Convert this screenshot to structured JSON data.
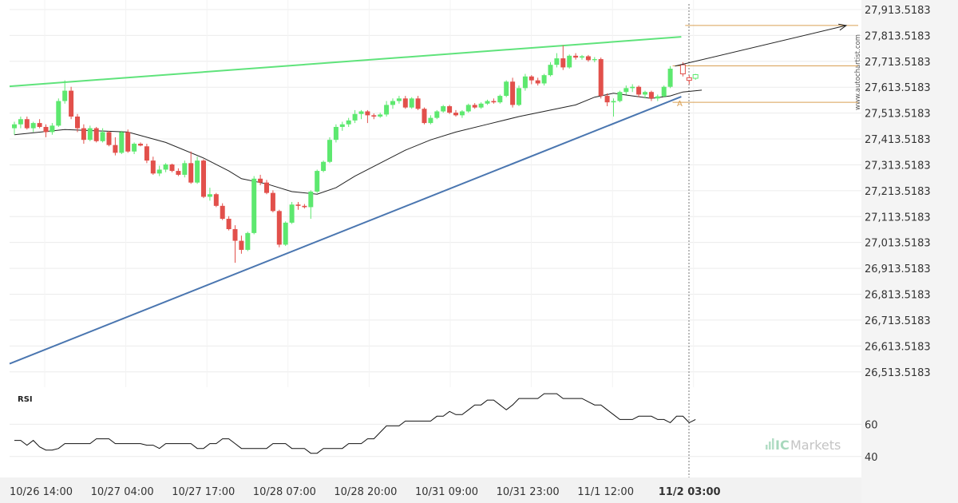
{
  "chart_data": {
    "type": "candlestick",
    "price_axis": {
      "ticks": [
        "27,913.5183",
        "27,813.5183",
        "27,713.5183",
        "27,613.5183",
        "27,513.5183",
        "27,413.5183",
        "27,313.5183",
        "27,213.5183",
        "27,113.5183",
        "27,013.5183",
        "26,913.5183",
        "26,813.5183",
        "26,713.5183",
        "26,613.5183",
        "26,513.5183"
      ],
      "ylim": [
        26485,
        27935
      ]
    },
    "time_axis": {
      "labels": [
        "10/26 14:00",
        "10/27 04:00",
        "10/27 17:00",
        "10/28 07:00",
        "10/28 20:00",
        "10/31 09:00",
        "10/31 23:00",
        "11/1 12:00",
        "11/2 03:00"
      ],
      "highlight": "11/2 03:00"
    },
    "watermark": "www.autochartist.com",
    "brand": {
      "prefix": "IC",
      "name": "Markets"
    },
    "rsi": {
      "label": "RSI",
      "ticks": [
        "60",
        "40"
      ],
      "ylim": [
        27,
        83
      ]
    },
    "pattern_marker": "A",
    "colors": {
      "bull": "#5de86f",
      "bear": "#e2504b",
      "resistance": "#5fe37b",
      "support": "#4a76b0",
      "level": "#d9a054",
      "ma": "#222222"
    },
    "candles": [
      {
        "o": 27455,
        "h": 27480,
        "l": 27430,
        "c": 27470
      },
      {
        "o": 27470,
        "h": 27500,
        "l": 27455,
        "c": 27490
      },
      {
        "o": 27490,
        "h": 27500,
        "l": 27450,
        "c": 27455
      },
      {
        "o": 27455,
        "h": 27480,
        "l": 27440,
        "c": 27475
      },
      {
        "o": 27475,
        "h": 27490,
        "l": 27455,
        "c": 27460
      },
      {
        "o": 27460,
        "h": 27470,
        "l": 27420,
        "c": 27440
      },
      {
        "o": 27440,
        "h": 27475,
        "l": 27430,
        "c": 27465
      },
      {
        "o": 27465,
        "h": 27570,
        "l": 27460,
        "c": 27560
      },
      {
        "o": 27560,
        "h": 27640,
        "l": 27550,
        "c": 27600
      },
      {
        "o": 27600,
        "h": 27615,
        "l": 27490,
        "c": 27500
      },
      {
        "o": 27500,
        "h": 27510,
        "l": 27440,
        "c": 27455
      },
      {
        "o": 27455,
        "h": 27470,
        "l": 27395,
        "c": 27410
      },
      {
        "o": 27410,
        "h": 27465,
        "l": 27405,
        "c": 27455
      },
      {
        "o": 27455,
        "h": 27460,
        "l": 27400,
        "c": 27405
      },
      {
        "o": 27405,
        "h": 27455,
        "l": 27400,
        "c": 27440
      },
      {
        "o": 27440,
        "h": 27445,
        "l": 27385,
        "c": 27390
      },
      {
        "o": 27390,
        "h": 27420,
        "l": 27350,
        "c": 27360
      },
      {
        "o": 27360,
        "h": 27445,
        "l": 27355,
        "c": 27440
      },
      {
        "o": 27440,
        "h": 27450,
        "l": 27360,
        "c": 27365
      },
      {
        "o": 27365,
        "h": 27400,
        "l": 27355,
        "c": 27395
      },
      {
        "o": 27395,
        "h": 27400,
        "l": 27385,
        "c": 27388
      },
      {
        "o": 27385,
        "h": 27395,
        "l": 27320,
        "c": 27330
      },
      {
        "o": 27330,
        "h": 27345,
        "l": 27275,
        "c": 27280
      },
      {
        "o": 27280,
        "h": 27310,
        "l": 27270,
        "c": 27295
      },
      {
        "o": 27295,
        "h": 27320,
        "l": 27285,
        "c": 27315
      },
      {
        "o": 27315,
        "h": 27318,
        "l": 27285,
        "c": 27290
      },
      {
        "o": 27290,
        "h": 27300,
        "l": 27270,
        "c": 27275
      },
      {
        "o": 27275,
        "h": 27330,
        "l": 27265,
        "c": 27320
      },
      {
        "o": 27320,
        "h": 27365,
        "l": 27240,
        "c": 27245
      },
      {
        "o": 27245,
        "h": 27345,
        "l": 27240,
        "c": 27330
      },
      {
        "o": 27330,
        "h": 27335,
        "l": 27185,
        "c": 27190
      },
      {
        "o": 27190,
        "h": 27225,
        "l": 27175,
        "c": 27200
      },
      {
        "o": 27200,
        "h": 27205,
        "l": 27150,
        "c": 27155
      },
      {
        "o": 27155,
        "h": 27165,
        "l": 27100,
        "c": 27105
      },
      {
        "o": 27105,
        "h": 27115,
        "l": 27060,
        "c": 27065
      },
      {
        "o": 27065,
        "h": 27080,
        "l": 26935,
        "c": 27020
      },
      {
        "o": 27020,
        "h": 27040,
        "l": 26970,
        "c": 26985
      },
      {
        "o": 26985,
        "h": 27055,
        "l": 26980,
        "c": 27050
      },
      {
        "o": 27050,
        "h": 27270,
        "l": 27045,
        "c": 27260
      },
      {
        "o": 27260,
        "h": 27275,
        "l": 27235,
        "c": 27245
      },
      {
        "o": 27245,
        "h": 27255,
        "l": 27200,
        "c": 27205
      },
      {
        "o": 27205,
        "h": 27215,
        "l": 27130,
        "c": 27135
      },
      {
        "o": 27135,
        "h": 27140,
        "l": 26995,
        "c": 27005
      },
      {
        "o": 27005,
        "h": 27095,
        "l": 27000,
        "c": 27090
      },
      {
        "o": 27090,
        "h": 27170,
        "l": 27085,
        "c": 27160
      },
      {
        "o": 27160,
        "h": 27170,
        "l": 27140,
        "c": 27155
      },
      {
        "o": 27155,
        "h": 27162,
        "l": 27145,
        "c": 27150
      },
      {
        "o": 27150,
        "h": 27215,
        "l": 27105,
        "c": 27210
      },
      {
        "o": 27210,
        "h": 27295,
        "l": 27205,
        "c": 27290
      },
      {
        "o": 27290,
        "h": 27330,
        "l": 27285,
        "c": 27325
      },
      {
        "o": 27325,
        "h": 27420,
        "l": 27320,
        "c": 27410
      },
      {
        "o": 27410,
        "h": 27470,
        "l": 27400,
        "c": 27460
      },
      {
        "o": 27460,
        "h": 27480,
        "l": 27445,
        "c": 27470
      },
      {
        "o": 27470,
        "h": 27495,
        "l": 27460,
        "c": 27485
      },
      {
        "o": 27485,
        "h": 27525,
        "l": 27475,
        "c": 27510
      },
      {
        "o": 27510,
        "h": 27525,
        "l": 27490,
        "c": 27520
      },
      {
        "o": 27520,
        "h": 27525,
        "l": 27475,
        "c": 27505
      },
      {
        "o": 27505,
        "h": 27512,
        "l": 27490,
        "c": 27500
      },
      {
        "o": 27500,
        "h": 27515,
        "l": 27495,
        "c": 27508
      },
      {
        "o": 27508,
        "h": 27560,
        "l": 27500,
        "c": 27545
      },
      {
        "o": 27545,
        "h": 27570,
        "l": 27530,
        "c": 27560
      },
      {
        "o": 27560,
        "h": 27580,
        "l": 27550,
        "c": 27570
      },
      {
        "o": 27570,
        "h": 27580,
        "l": 27530,
        "c": 27535
      },
      {
        "o": 27535,
        "h": 27575,
        "l": 27530,
        "c": 27570
      },
      {
        "o": 27570,
        "h": 27580,
        "l": 27525,
        "c": 27530
      },
      {
        "o": 27530,
        "h": 27535,
        "l": 27470,
        "c": 27475
      },
      {
        "o": 27475,
        "h": 27505,
        "l": 27470,
        "c": 27495
      },
      {
        "o": 27495,
        "h": 27525,
        "l": 27490,
        "c": 27520
      },
      {
        "o": 27520,
        "h": 27545,
        "l": 27515,
        "c": 27540
      },
      {
        "o": 27540,
        "h": 27545,
        "l": 27510,
        "c": 27515
      },
      {
        "o": 27515,
        "h": 27525,
        "l": 27500,
        "c": 27505
      },
      {
        "o": 27505,
        "h": 27525,
        "l": 27495,
        "c": 27520
      },
      {
        "o": 27520,
        "h": 27550,
        "l": 27515,
        "c": 27545
      },
      {
        "o": 27545,
        "h": 27552,
        "l": 27530,
        "c": 27535
      },
      {
        "o": 27535,
        "h": 27555,
        "l": 27530,
        "c": 27550
      },
      {
        "o": 27550,
        "h": 27565,
        "l": 27545,
        "c": 27560
      },
      {
        "o": 27560,
        "h": 27570,
        "l": 27550,
        "c": 27555
      },
      {
        "o": 27555,
        "h": 27585,
        "l": 27550,
        "c": 27580
      },
      {
        "o": 27580,
        "h": 27640,
        "l": 27575,
        "c": 27635
      },
      {
        "o": 27635,
        "h": 27650,
        "l": 27535,
        "c": 27545
      },
      {
        "o": 27545,
        "h": 27620,
        "l": 27540,
        "c": 27610
      },
      {
        "o": 27610,
        "h": 27665,
        "l": 27600,
        "c": 27655
      },
      {
        "o": 27655,
        "h": 27660,
        "l": 27625,
        "c": 27640
      },
      {
        "o": 27640,
        "h": 27650,
        "l": 27620,
        "c": 27628
      },
      {
        "o": 27628,
        "h": 27665,
        "l": 27620,
        "c": 27660
      },
      {
        "o": 27660,
        "h": 27710,
        "l": 27655,
        "c": 27700
      },
      {
        "o": 27700,
        "h": 27745,
        "l": 27690,
        "c": 27725
      },
      {
        "o": 27725,
        "h": 27775,
        "l": 27680,
        "c": 27690
      },
      {
        "o": 27690,
        "h": 27740,
        "l": 27685,
        "c": 27735
      },
      {
        "o": 27735,
        "h": 27745,
        "l": 27720,
        "c": 27728
      },
      {
        "o": 27728,
        "h": 27738,
        "l": 27720,
        "c": 27733
      },
      {
        "o": 27733,
        "h": 27738,
        "l": 27712,
        "c": 27718
      },
      {
        "o": 27718,
        "h": 27730,
        "l": 27710,
        "c": 27722
      },
      {
        "o": 27722,
        "h": 27728,
        "l": 27570,
        "c": 27580
      },
      {
        "o": 27580,
        "h": 27590,
        "l": 27540,
        "c": 27555
      },
      {
        "o": 27555,
        "h": 27570,
        "l": 27500,
        "c": 27560
      },
      {
        "o": 27560,
        "h": 27600,
        "l": 27555,
        "c": 27595
      },
      {
        "o": 27595,
        "h": 27620,
        "l": 27585,
        "c": 27610
      },
      {
        "o": 27610,
        "h": 27625,
        "l": 27595,
        "c": 27615
      },
      {
        "o": 27615,
        "h": 27620,
        "l": 27575,
        "c": 27585
      },
      {
        "o": 27585,
        "h": 27600,
        "l": 27570,
        "c": 27595
      },
      {
        "o": 27595,
        "h": 27600,
        "l": 27560,
        "c": 27570
      },
      {
        "o": 27570,
        "h": 27585,
        "l": 27560,
        "c": 27578
      },
      {
        "o": 27578,
        "h": 27620,
        "l": 27575,
        "c": 27615
      },
      {
        "o": 27615,
        "h": 27695,
        "l": 27610,
        "c": 27685
      }
    ],
    "future_candles": [
      {
        "o": 27700,
        "h": 27710,
        "l": 27655,
        "c": 27665
      },
      {
        "o": 27650,
        "h": 27660,
        "l": 27625,
        "c": 27640
      },
      {
        "o": 27648,
        "h": 27665,
        "l": 27642,
        "c": 27662
      }
    ],
    "ma": [
      [
        0,
        27430
      ],
      [
        8,
        27450
      ],
      [
        18,
        27440
      ],
      [
        24,
        27400
      ],
      [
        30,
        27340
      ],
      [
        34,
        27290
      ],
      [
        36,
        27260
      ],
      [
        40,
        27240
      ],
      [
        44,
        27210
      ],
      [
        48,
        27200
      ],
      [
        51,
        27225
      ],
      [
        54,
        27270
      ],
      [
        58,
        27320
      ],
      [
        62,
        27370
      ],
      [
        66,
        27410
      ],
      [
        70,
        27440
      ],
      [
        75,
        27470
      ],
      [
        80,
        27500
      ],
      [
        85,
        27525
      ],
      [
        89,
        27545
      ],
      [
        92,
        27575
      ],
      [
        95,
        27590
      ],
      [
        98,
        27580
      ],
      [
        101,
        27570
      ],
      [
        104,
        27580
      ],
      [
        106,
        27595
      ],
      [
        109,
        27602
      ]
    ],
    "resistance_line": {
      "from": [
        0,
        27617
      ],
      "to": [
        106,
        27808
      ]
    },
    "support_line": {
      "from": [
        0,
        26545
      ],
      "to": [
        106,
        27577
      ]
    },
    "levels": [
      {
        "price": 27852,
        "from_index": 107
      },
      {
        "price": 27696,
        "from_index": 105
      },
      {
        "price": 27555,
        "from_index": 105
      }
    ],
    "projection": {
      "from": [
        105,
        27695
      ],
      "to": [
        116,
        27852
      ]
    },
    "rsi_values": [
      50,
      50,
      47,
      50,
      46,
      44,
      44,
      45,
      48,
      48,
      48,
      48,
      48,
      51,
      51,
      51,
      48,
      48,
      48,
      48,
      48,
      47,
      47,
      45,
      48,
      48,
      48,
      48,
      48,
      45,
      45,
      48,
      48,
      51,
      51,
      48,
      45,
      45,
      45,
      45,
      45,
      48,
      48,
      48,
      45,
      45,
      45,
      42,
      42,
      45,
      45,
      45,
      45,
      48,
      48,
      48,
      51,
      51,
      55,
      59,
      59,
      59,
      62,
      62,
      62,
      62,
      62,
      65,
      65,
      68,
      66,
      66,
      69,
      72,
      72,
      75,
      75,
      72,
      69,
      72,
      76,
      76,
      76,
      76,
      79,
      79,
      79,
      76,
      76,
      76,
      76,
      74,
      72,
      72,
      69,
      66,
      63,
      63,
      63,
      65,
      65,
      65,
      63,
      63,
      61,
      65,
      65,
      61,
      63
    ]
  }
}
